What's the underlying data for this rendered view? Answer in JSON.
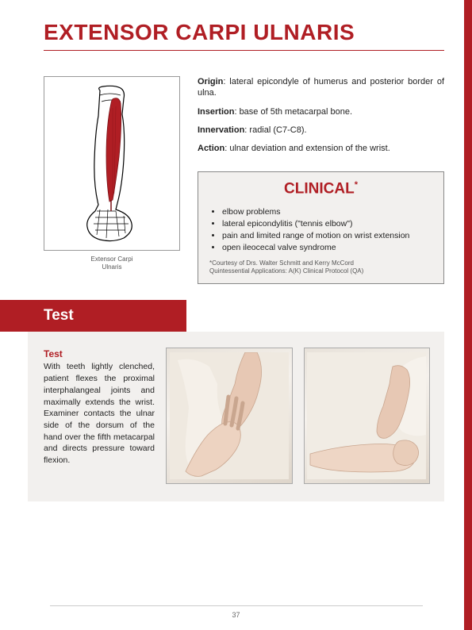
{
  "title": "EXTENSOR CARPI ULNARIS",
  "anatomy": {
    "caption": "Extensor Carpi\nUlnaris",
    "muscle_color": "#b01e24",
    "outline_color": "#000000"
  },
  "info": [
    {
      "label": "Origin",
      "text": ": lateral epicondyle of humerus and posterior border of ulna."
    },
    {
      "label": "Insertion",
      "text": ": base of 5th metacarpal bone."
    },
    {
      "label": "Innervation",
      "text": ": radial (C7-C8)."
    },
    {
      "label": "Action",
      "text": ": ulnar deviation and extension of the wrist."
    }
  ],
  "clinical": {
    "heading": "CLINICAL",
    "sup": "*",
    "items": [
      "elbow problems",
      "lateral epicondylitis (\"tennis elbow\")",
      "pain and limited range of motion on wrist extension",
      "open ileocecal valve syndrome"
    ],
    "footnote": "*Courtesy of Drs. Walter Schmitt and Kerry McCord\nQuintessential Applications: A(K) Clinical Protocol (QA)",
    "title_color": "#b01e24",
    "bg_color": "#f2f0ee"
  },
  "test": {
    "banner": "Test",
    "heading": "Test",
    "body": "With teeth lightly clenched, patient flexes the proximal interphalangeal joints and maximally extends the wrist. Examiner contacts the ulnar side of the dorsum of the hand over the fifth metacarpal and directs pressure toward flexion.",
    "banner_bg": "#b01e24",
    "section_bg": "#f2f0ee"
  },
  "page_number": "37",
  "colors": {
    "accent": "#b01e24",
    "page_bg": "#ffffff",
    "box_bg": "#f2f0ee",
    "text": "#222222"
  }
}
